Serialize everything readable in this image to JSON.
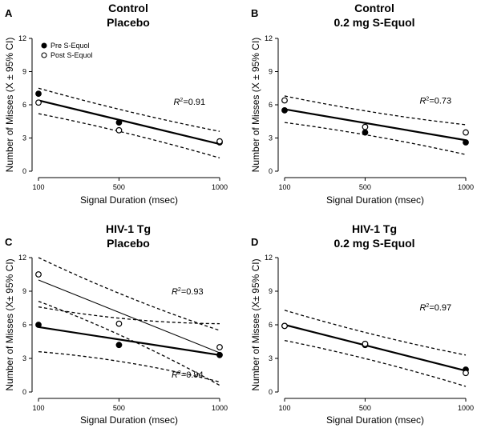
{
  "chart_data": [
    {
      "type": "scatter",
      "letter": "A",
      "title_line1": "Control",
      "title_line2": "Placebo",
      "xlabel": "Signal Duration (msec)",
      "ylabel": "Number of Misses (X ± 95% CI)",
      "x_ticks": [
        100,
        500,
        1000
      ],
      "y_ticks": [
        0,
        3,
        6,
        9,
        12
      ],
      "xlim": [
        100,
        1000
      ],
      "ylim": [
        0,
        12
      ],
      "legend": [
        "Pre S-Equol",
        "Post S-Equol"
      ],
      "series": [
        {
          "name": "Pre S-Equol",
          "marker": "filled",
          "x": [
            100,
            500,
            1000
          ],
          "y": [
            7.0,
            4.4,
            2.6
          ]
        },
        {
          "name": "Post S-Equol",
          "marker": "open",
          "x": [
            100,
            500,
            1000
          ],
          "y": [
            6.2,
            3.7,
            2.7
          ]
        }
      ],
      "fits": [
        {
          "line": [
            6.4,
            2.45
          ],
          "ci_upper": [
            7.5,
            3.6
          ],
          "ci_lower": [
            5.2,
            1.2
          ],
          "line_style": "bold"
        }
      ],
      "annotations": [
        {
          "r2_value": "=0.91",
          "x": 850,
          "y": 6.0
        }
      ]
    },
    {
      "type": "scatter",
      "letter": "B",
      "title_line1": "Control",
      "title_line2": "0.2 mg S-Equol",
      "xlabel": "Signal Duration (msec)",
      "ylabel": "Number of Misses (X ± 95% CI)",
      "x_ticks": [
        100,
        500,
        1000
      ],
      "y_ticks": [
        0,
        3,
        6,
        9,
        12
      ],
      "xlim": [
        100,
        1000
      ],
      "ylim": [
        0,
        12
      ],
      "legend": [],
      "series": [
        {
          "name": "Pre S-Equol",
          "marker": "filled",
          "x": [
            100,
            500,
            1000
          ],
          "y": [
            5.5,
            3.5,
            2.6
          ]
        },
        {
          "name": "Post S-Equol",
          "marker": "open",
          "x": [
            100,
            500,
            1000
          ],
          "y": [
            6.4,
            4.0,
            3.5
          ]
        }
      ],
      "fits": [
        {
          "line": [
            5.6,
            2.8
          ],
          "ci_upper": [
            6.8,
            4.2
          ],
          "ci_lower": [
            4.4,
            1.5
          ],
          "line_style": "bold"
        }
      ],
      "annotations": [
        {
          "r2_value": "=0.73",
          "x": 850,
          "y": 6.1
        }
      ]
    },
    {
      "type": "scatter",
      "letter": "C",
      "title_line1": "HIV-1  Tg",
      "title_line2": "Placebo",
      "xlabel": "Signal Duration (msec)",
      "ylabel": "Number of Misses (X± 95% CI)",
      "x_ticks": [
        100,
        500,
        1000
      ],
      "y_ticks": [
        0,
        3,
        6,
        9,
        12
      ],
      "xlim": [
        100,
        1000
      ],
      "ylim": [
        0,
        12
      ],
      "legend": [],
      "series": [
        {
          "name": "Pre S-Equol",
          "marker": "filled",
          "x": [
            100,
            500,
            1000
          ],
          "y": [
            6.0,
            4.2,
            3.3
          ]
        },
        {
          "name": "Post S-Equol",
          "marker": "open",
          "x": [
            100,
            500,
            1000
          ],
          "y": [
            10.5,
            6.1,
            4.0
          ]
        }
      ],
      "fits": [
        {
          "line": [
            5.8,
            3.3
          ],
          "ci_upper": [
            7.6,
            6.1
          ],
          "ci_lower": [
            3.6,
            0.9
          ],
          "line_style": "bold"
        },
        {
          "line": [
            10.0,
            3.5
          ],
          "ci_upper": [
            12.0,
            5.5
          ],
          "ci_lower": [
            8.1,
            0.6
          ],
          "line_style": "thin"
        }
      ],
      "annotations": [
        {
          "r2_value": "=0.93",
          "x": 840,
          "y": 8.7
        },
        {
          "r2_value": "=0.94",
          "x": 840,
          "y": 1.3
        }
      ]
    },
    {
      "type": "scatter",
      "letter": "D",
      "title_line1": "HIV-1  Tg",
      "title_line2": "0.2 mg S-Equol",
      "xlabel": "Signal Duration (msec)",
      "ylabel": "Number of Misses (X± 95% CI)",
      "x_ticks": [
        100,
        500,
        1000
      ],
      "y_ticks": [
        0,
        3,
        6,
        9,
        12
      ],
      "xlim": [
        100,
        1000
      ],
      "ylim": [
        0,
        12
      ],
      "legend": [],
      "series": [
        {
          "name": "Pre S-Equol",
          "marker": "filled",
          "x": [
            100,
            500,
            1000
          ],
          "y": [
            5.9,
            4.2,
            2.0
          ]
        },
        {
          "name": "Post S-Equol",
          "marker": "open",
          "x": [
            100,
            500,
            1000
          ],
          "y": [
            5.9,
            4.3,
            1.7
          ]
        }
      ],
      "fits": [
        {
          "line": [
            6.0,
            1.9
          ],
          "ci_upper": [
            7.3,
            3.3
          ],
          "ci_lower": [
            4.6,
            0.5
          ],
          "line_style": "bold"
        }
      ],
      "annotations": [
        {
          "r2_value": "=0.97",
          "x": 850,
          "y": 7.3
        }
      ]
    }
  ]
}
